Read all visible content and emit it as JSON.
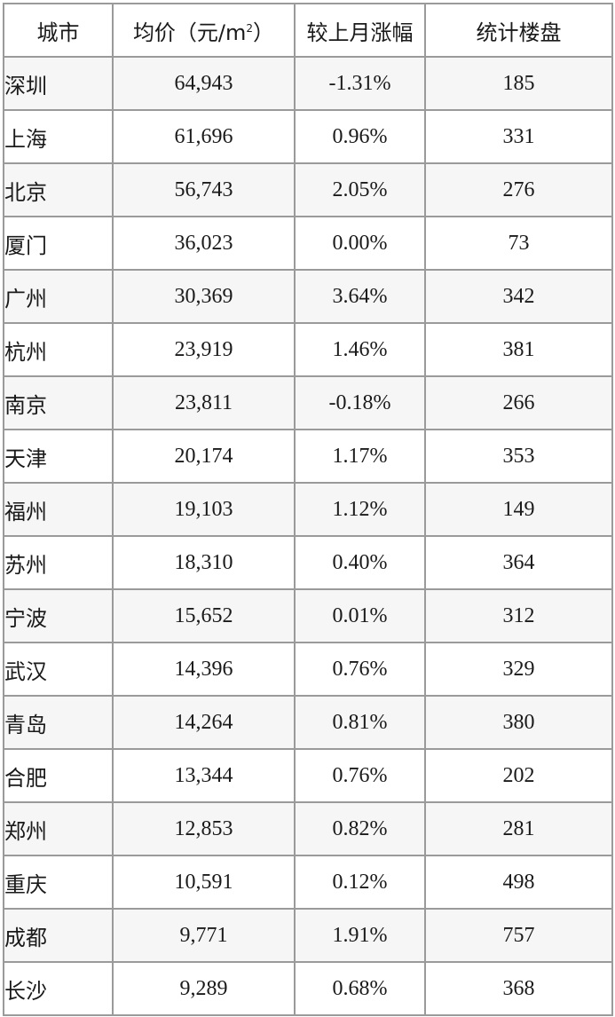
{
  "headers": {
    "city": "城市",
    "price_prefix": "均价（元/m",
    "price_sup": "2",
    "price_suffix": "）",
    "change": "较上月涨幅",
    "projects": "统计楼盘"
  },
  "rows": [
    {
      "city": "深圳",
      "price": "64,943",
      "change": "-1.31%",
      "projects": "185"
    },
    {
      "city": "上海",
      "price": "61,696",
      "change": "0.96%",
      "projects": "331"
    },
    {
      "city": "北京",
      "price": "56,743",
      "change": "2.05%",
      "projects": "276"
    },
    {
      "city": "厦门",
      "price": "36,023",
      "change": "0.00%",
      "projects": "73"
    },
    {
      "city": "广州",
      "price": "30,369",
      "change": "3.64%",
      "projects": "342"
    },
    {
      "city": "杭州",
      "price": "23,919",
      "change": "1.46%",
      "projects": "381"
    },
    {
      "city": "南京",
      "price": "23,811",
      "change": "-0.18%",
      "projects": "266"
    },
    {
      "city": "天津",
      "price": "20,174",
      "change": "1.17%",
      "projects": "353"
    },
    {
      "city": "福州",
      "price": "19,103",
      "change": "1.12%",
      "projects": "149"
    },
    {
      "city": "苏州",
      "price": "18,310",
      "change": "0.40%",
      "projects": "364"
    },
    {
      "city": "宁波",
      "price": "15,652",
      "change": "0.01%",
      "projects": "312"
    },
    {
      "city": "武汉",
      "price": "14,396",
      "change": "0.76%",
      "projects": "329"
    },
    {
      "city": "青岛",
      "price": "14,264",
      "change": "0.81%",
      "projects": "380"
    },
    {
      "city": "合肥",
      "price": "13,344",
      "change": "0.76%",
      "projects": "202"
    },
    {
      "city": "郑州",
      "price": "12,853",
      "change": "0.82%",
      "projects": "281"
    },
    {
      "city": "重庆",
      "price": "10,591",
      "change": "0.12%",
      "projects": "498"
    },
    {
      "city": "成都",
      "price": "9,771",
      "change": "1.91%",
      "projects": "757"
    },
    {
      "city": "长沙",
      "price": "9,289",
      "change": "0.68%",
      "projects": "368"
    }
  ],
  "colors": {
    "border": "#9a9a9a",
    "shaded_row": "#f6f6f6",
    "text": "#1a1a1a"
  }
}
